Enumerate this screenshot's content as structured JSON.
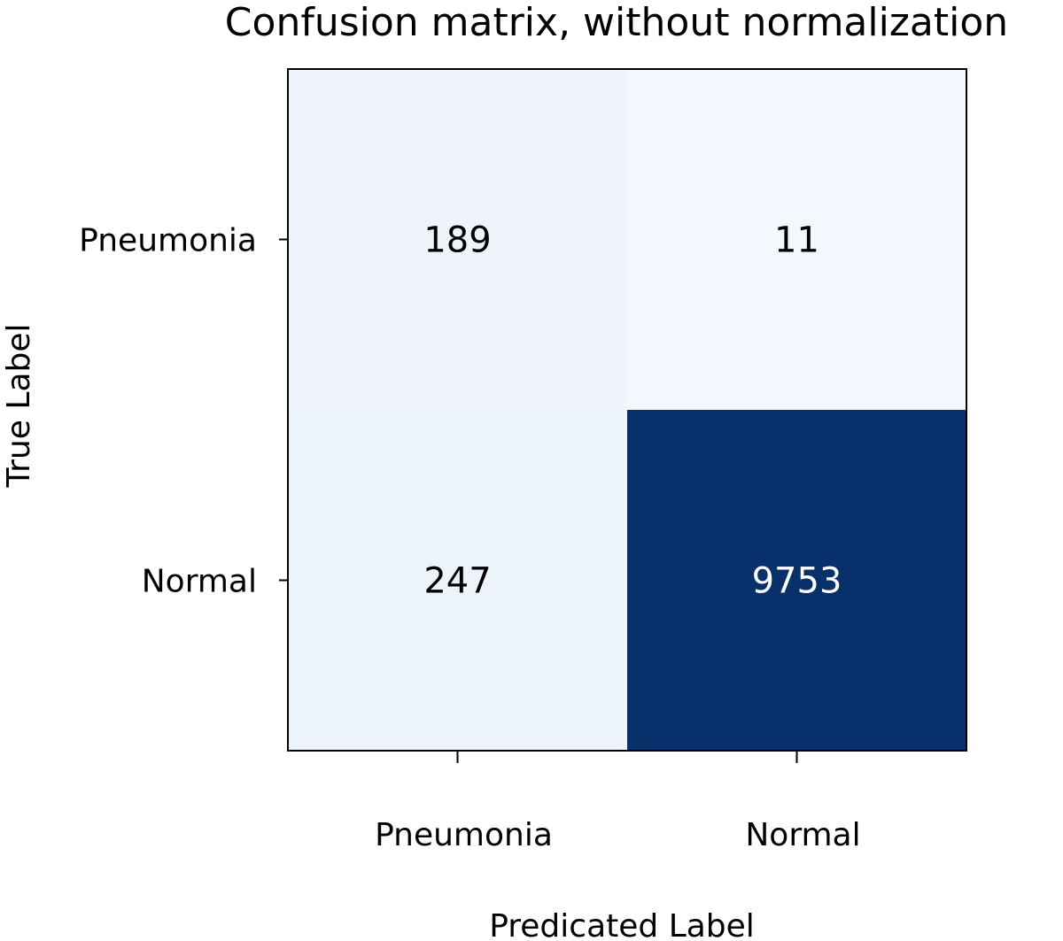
{
  "chart_data": {
    "type": "heatmap",
    "title": "Confusion matrix, without normalization",
    "xlabel": "Predicated Label",
    "ylabel": "True Label",
    "x_categories": [
      "Pneumonia",
      "Normal"
    ],
    "y_categories": [
      "Pneumonia",
      "Normal"
    ],
    "values": [
      [
        189,
        11
      ],
      [
        247,
        9753
      ]
    ],
    "colormap": "Blues",
    "colors": {
      "low": "#f3f8fe",
      "high": "#08306b",
      "text_dark": "#000000",
      "text_light": "#ffffff",
      "frame": "#000000"
    }
  }
}
